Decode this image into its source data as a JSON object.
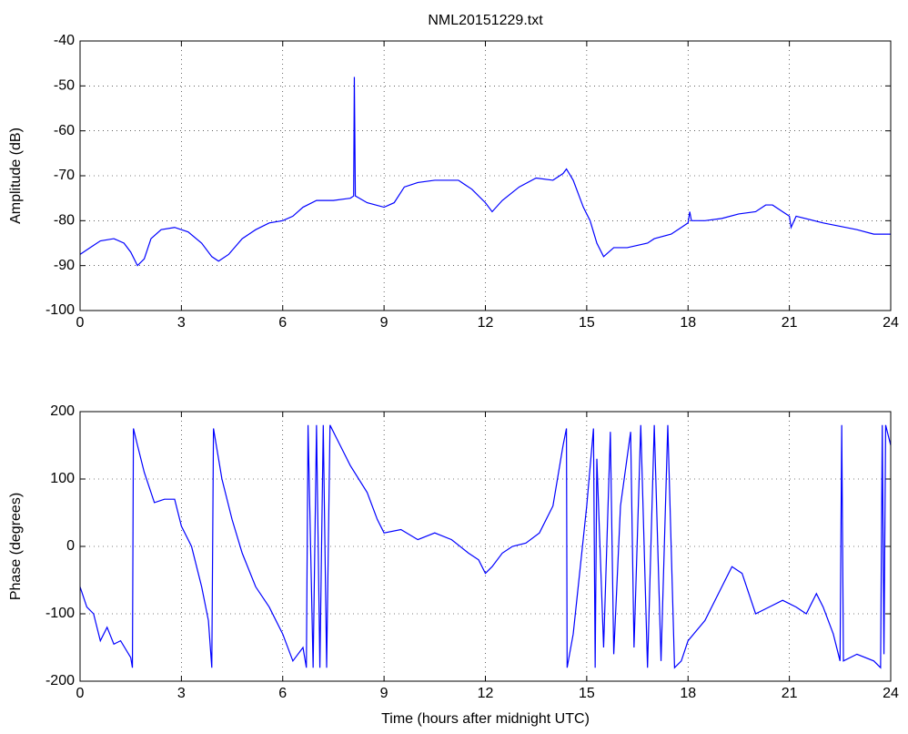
{
  "chart_data": [
    {
      "type": "line",
      "title": "NML20151229.txt",
      "ylabel": "Amplitude (dB)",
      "grid": true,
      "xlim": [
        0,
        24
      ],
      "xticks": [
        0,
        3,
        6,
        9,
        12,
        15,
        18,
        21,
        24
      ],
      "ylim": [
        -100,
        -40
      ],
      "yticks": [
        -100,
        -90,
        -80,
        -70,
        -60,
        -50,
        -40
      ],
      "x": [
        0,
        0.3,
        0.6,
        1.0,
        1.3,
        1.5,
        1.7,
        1.9,
        2.1,
        2.4,
        2.8,
        3.2,
        3.6,
        3.9,
        4.1,
        4.4,
        4.8,
        5.2,
        5.6,
        6.0,
        6.3,
        6.6,
        7.0,
        7.5,
        8.0,
        8.1,
        8.12,
        8.15,
        8.5,
        9.0,
        9.3,
        9.6,
        10.0,
        10.5,
        11.2,
        11.6,
        12.0,
        12.2,
        12.5,
        13.0,
        13.5,
        14.0,
        14.3,
        14.4,
        14.6,
        14.9,
        15.1,
        15.3,
        15.5,
        15.8,
        16.2,
        16.8,
        17.0,
        17.5,
        17.8,
        18.0,
        18.05,
        18.1,
        18.5,
        19.0,
        19.5,
        20.0,
        20.3,
        20.5,
        20.8,
        21.0,
        21.05,
        21.2,
        22.0,
        23.0,
        23.5,
        24
      ],
      "series": [
        {
          "color": "#0000ff",
          "values": [
            -87.5,
            -86,
            -84.5,
            -84,
            -85,
            -87,
            -90,
            -88.5,
            -84,
            -82,
            -81.5,
            -82.5,
            -85,
            -88,
            -89,
            -87.5,
            -84,
            -82,
            -80.5,
            -80,
            -79,
            -77,
            -75.5,
            -75.5,
            -75,
            -74.5,
            -48,
            -74.5,
            -76,
            -77,
            -76,
            -72.5,
            -71.5,
            -71,
            -71,
            -73,
            -76,
            -78,
            -75.5,
            -72.5,
            -70.5,
            -71,
            -69.5,
            -68.5,
            -71,
            -77,
            -80,
            -85,
            -88,
            -86,
            -86,
            -85,
            -84,
            -83,
            -81.5,
            -80.5,
            -78,
            -80,
            -80,
            -79.5,
            -78.5,
            -78,
            -76.5,
            -76.5,
            -78,
            -79,
            -81.5,
            -79,
            -80.5,
            -82,
            -83,
            -83
          ]
        }
      ]
    },
    {
      "type": "line",
      "xlabel": "Time (hours after midnight UTC)",
      "ylabel": "Phase (degrees)",
      "grid": true,
      "xlim": [
        0,
        24
      ],
      "xticks": [
        0,
        3,
        6,
        9,
        12,
        15,
        18,
        21,
        24
      ],
      "ylim": [
        -200,
        200
      ],
      "yticks": [
        -200,
        -100,
        0,
        100,
        200
      ],
      "x": [
        0,
        0.2,
        0.4,
        0.6,
        0.8,
        1.0,
        1.2,
        1.5,
        1.55,
        1.58,
        1.7,
        1.9,
        2.2,
        2.5,
        2.8,
        3.0,
        3.3,
        3.6,
        3.8,
        3.9,
        3.95,
        4.2,
        4.5,
        4.8,
        5.2,
        5.6,
        6.0,
        6.3,
        6.6,
        6.7,
        6.75,
        6.9,
        7.0,
        7.1,
        7.2,
        7.3,
        7.4,
        7.6,
        8.0,
        8.5,
        8.8,
        9.0,
        9.5,
        10.0,
        10.5,
        11.0,
        11.5,
        11.8,
        12.0,
        12.2,
        12.5,
        12.8,
        13.2,
        13.6,
        14.0,
        14.3,
        14.4,
        14.42,
        14.6,
        15.0,
        15.2,
        15.25,
        15.3,
        15.5,
        15.7,
        15.8,
        16.0,
        16.3,
        16.4,
        16.6,
        16.8,
        17.0,
        17.2,
        17.4,
        17.6,
        17.8,
        18.0,
        18.5,
        19.0,
        19.3,
        19.6,
        20.0,
        20.4,
        20.8,
        21.2,
        21.5,
        21.8,
        22.0,
        22.3,
        22.5,
        22.55,
        22.6,
        23.0,
        23.5,
        23.7,
        23.75,
        23.8,
        23.85,
        24
      ],
      "series": [
        {
          "color": "#0000ff",
          "values": [
            -60,
            -90,
            -100,
            -140,
            -120,
            -145,
            -140,
            -165,
            -180,
            175,
            150,
            110,
            65,
            70,
            70,
            30,
            0,
            -60,
            -110,
            -180,
            175,
            100,
            40,
            -10,
            -60,
            -90,
            -130,
            -170,
            -150,
            -180,
            180,
            -180,
            180,
            -180,
            180,
            -180,
            180,
            160,
            120,
            80,
            40,
            20,
            25,
            10,
            20,
            10,
            -10,
            -20,
            -40,
            -30,
            -10,
            0,
            5,
            20,
            60,
            150,
            175,
            -180,
            -130,
            60,
            175,
            -180,
            130,
            -150,
            170,
            -160,
            60,
            170,
            -150,
            180,
            -180,
            180,
            -170,
            180,
            -180,
            -170,
            -140,
            -110,
            -60,
            -30,
            -40,
            -100,
            -90,
            -80,
            -90,
            -100,
            -70,
            -90,
            -130,
            -170,
            180,
            -170,
            -160,
            -170,
            -180,
            180,
            -160,
            180,
            150
          ]
        }
      ]
    }
  ]
}
